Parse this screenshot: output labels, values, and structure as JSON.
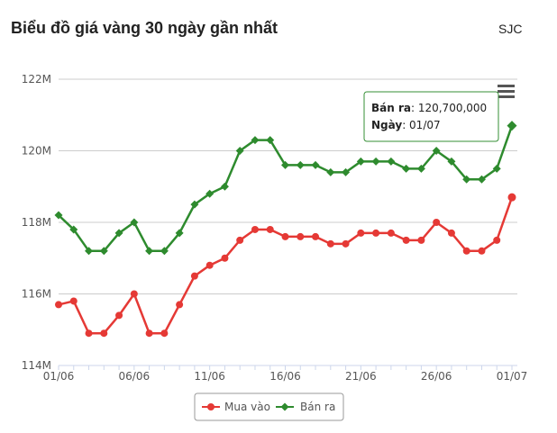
{
  "header": {
    "title": "Biểu đồ giá vàng 30 ngày gần nhất",
    "brand": "SJC"
  },
  "colors": {
    "buy": "#e53935",
    "sell": "#2e8b2e",
    "grid": "#cccccc",
    "menu": "#555555"
  },
  "icons": {
    "menu": "hamburger-menu-icon"
  },
  "tooltip": {
    "label": "Bán ra",
    "value": ": 120,700,000",
    "date_label": "Ngày",
    "date_value": ": 01/07"
  },
  "chart_data": {
    "type": "line",
    "x": [
      "01/06",
      "02/06",
      "03/06",
      "04/06",
      "05/06",
      "06/06",
      "07/06",
      "08/06",
      "09/06",
      "10/06",
      "11/06",
      "12/06",
      "13/06",
      "14/06",
      "15/06",
      "16/06",
      "17/06",
      "18/06",
      "19/06",
      "20/06",
      "21/06",
      "22/06",
      "23/06",
      "24/06",
      "25/06",
      "26/06",
      "27/06",
      "28/06",
      "29/06",
      "30/06",
      "01/07"
    ],
    "xticks": [
      "01/06",
      "06/06",
      "11/06",
      "16/06",
      "21/06",
      "26/06",
      "01/07"
    ],
    "yticks": [
      "114M",
      "116M",
      "118M",
      "120M",
      "122M"
    ],
    "ylim": [
      114000000,
      122000000
    ],
    "series": [
      {
        "name": "Mua vào",
        "key": "buy",
        "marker": "circle",
        "values": [
          115700000,
          115800000,
          114900000,
          114900000,
          115400000,
          116000000,
          114900000,
          114900000,
          115700000,
          116500000,
          116800000,
          117000000,
          117500000,
          117800000,
          117800000,
          117600000,
          117600000,
          117600000,
          117400000,
          117400000,
          117700000,
          117700000,
          117700000,
          117500000,
          117500000,
          118000000,
          117700000,
          117200000,
          117200000,
          117500000,
          118700000
        ]
      },
      {
        "name": "Bán ra",
        "key": "sell",
        "marker": "diamond",
        "values": [
          118200000,
          117800000,
          117200000,
          117200000,
          117700000,
          118000000,
          117200000,
          117200000,
          117700000,
          118500000,
          118800000,
          119000000,
          120000000,
          120300000,
          120300000,
          119600000,
          119600000,
          119600000,
          119400000,
          119400000,
          119700000,
          119700000,
          119700000,
          119500000,
          119500000,
          120000000,
          119700000,
          119200000,
          119200000,
          119500000,
          120700000
        ]
      }
    ],
    "legend_position": "bottom-center",
    "grid": true
  }
}
